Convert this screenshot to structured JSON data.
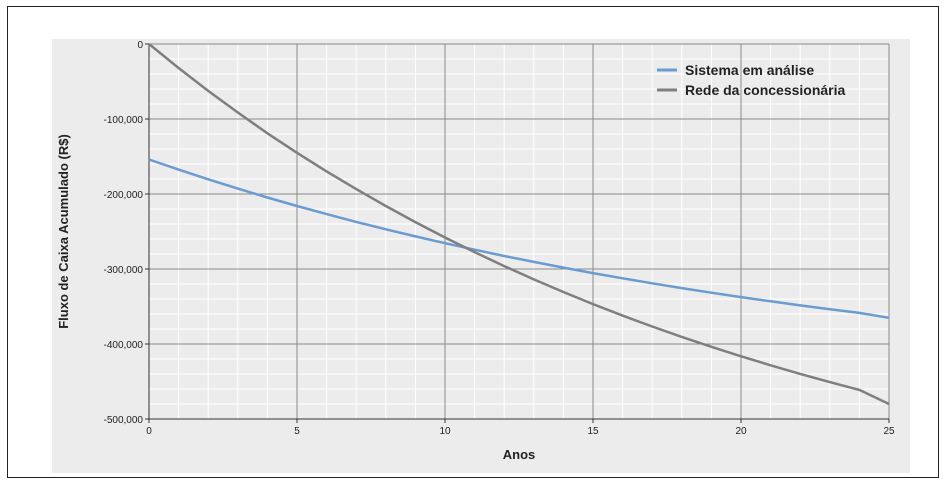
{
  "chart_data": {
    "type": "line",
    "xlabel": "Anos",
    "ylabel": "Fluxo de Caixa Acumulado (R$)",
    "xlim": [
      0,
      25
    ],
    "ylim": [
      -500000,
      0
    ],
    "x_ticks": [
      0,
      5,
      10,
      15,
      20,
      25
    ],
    "x_tick_labels": [
      "0",
      "5",
      "10",
      "15",
      "20",
      "25"
    ],
    "y_ticks": [
      0,
      -100000,
      -200000,
      -300000,
      -400000,
      -500000
    ],
    "y_tick_labels": [
      "0",
      "-100,000",
      "-200,000",
      "-300,000",
      "-400,000",
      "-500,000"
    ],
    "grid": true,
    "legend_position": "top-right",
    "x": [
      0,
      1,
      2,
      3,
      4,
      5,
      6,
      7,
      8,
      9,
      10,
      11,
      12,
      13,
      14,
      15,
      16,
      17,
      18,
      19,
      20,
      21,
      22,
      23,
      24,
      25
    ],
    "series": [
      {
        "name": "Sistema em análise",
        "color": "#6a9bd1",
        "values": [
          -154000,
          -167500,
          -180400,
          -192800,
          -204700,
          -216000,
          -226800,
          -237200,
          -247100,
          -256600,
          -265600,
          -274300,
          -282600,
          -290500,
          -298100,
          -305400,
          -312400,
          -319100,
          -325500,
          -331600,
          -337500,
          -343100,
          -348500,
          -353700,
          -358600,
          -365000
        ]
      },
      {
        "name": "Rede da concessionária",
        "color": "#7f7f7f",
        "values": [
          0,
          -32000,
          -62500,
          -91400,
          -119000,
          -145000,
          -169800,
          -193500,
          -216000,
          -237500,
          -258000,
          -277500,
          -296100,
          -313800,
          -330700,
          -346800,
          -362100,
          -376700,
          -390600,
          -403800,
          -416400,
          -428400,
          -439900,
          -450800,
          -461200,
          -480000
        ]
      }
    ]
  }
}
